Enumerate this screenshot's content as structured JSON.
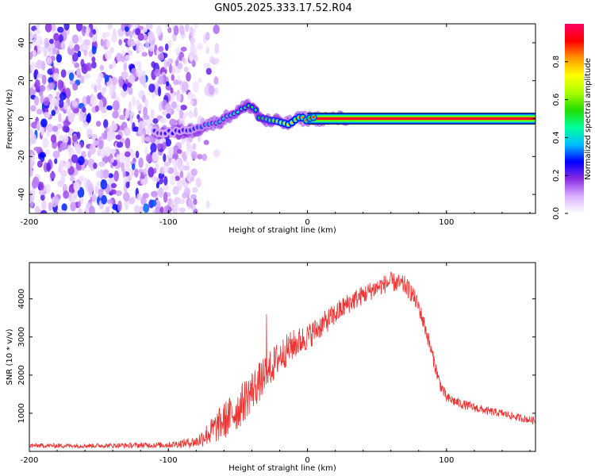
{
  "title": "GN05.2025.333.17.52.R04",
  "chart_data": [
    {
      "type": "heatmap",
      "name": "spectrogram",
      "xlabel": "Height of straight line (km)",
      "ylabel": "Frequency (Hz)",
      "xlim": [
        -200,
        164
      ],
      "ylim": [
        -50,
        50
      ],
      "xticks": [
        "-200",
        "-100",
        "0",
        "100"
      ],
      "yticks": [
        "-40",
        "-20",
        "0",
        "20",
        "40"
      ],
      "colorbar": {
        "label": "Normalized spectral amplitude",
        "range": [
          0,
          1
        ],
        "ticks": [
          "0.0",
          "0.2",
          "0.4",
          "0.6",
          "0.8"
        ],
        "colors": [
          "#ffffff",
          "#d8b0ff",
          "#8a2be2",
          "#0000ff",
          "#00bfff",
          "#00ff99",
          "#22dd00",
          "#aaff00",
          "#ffff00",
          "#ff9900",
          "#ff0000",
          "#ff0066"
        ]
      },
      "noise_region": {
        "x_from": -200,
        "x_to": -80,
        "amplitude": 0.2
      },
      "signal_track": {
        "x": [
          -110,
          -100,
          -90,
          -80,
          -75,
          -70,
          -65,
          -60,
          -55,
          -50,
          -45,
          -42,
          -38,
          -35,
          -30,
          -25,
          -20,
          -15,
          -10,
          -5,
          0,
          10,
          25,
          50,
          100,
          164
        ],
        "freq": [
          -7,
          -7,
          -7,
          -6,
          -4,
          -3,
          -2,
          0,
          2,
          4,
          6,
          7,
          5,
          1,
          -1,
          -2,
          -1,
          -3,
          -1,
          0,
          0,
          0,
          0,
          0,
          0,
          0
        ],
        "amplitude": [
          0.25,
          0.25,
          0.28,
          0.3,
          0.33,
          0.35,
          0.38,
          0.4,
          0.42,
          0.45,
          0.48,
          0.5,
          0.52,
          0.55,
          0.58,
          0.62,
          0.68,
          0.72,
          0.78,
          0.82,
          0.86,
          0.9,
          0.92,
          0.93,
          0.94,
          0.95
        ]
      }
    },
    {
      "type": "line",
      "name": "snr",
      "xlabel": "Height of straight line (km)",
      "ylabel": "SNR (10 * v/v)",
      "xlim": [
        -200,
        164
      ],
      "ylim": [
        0,
        4950
      ],
      "xticks": [
        "-200",
        "-100",
        "0",
        "100"
      ],
      "yticks": [
        "1000",
        "2000",
        "3000",
        "4000"
      ],
      "color": "#ee3333",
      "series": [
        {
          "name": "SNR",
          "x": [
            -200,
            -150,
            -100,
            -80,
            -70,
            -60,
            -50,
            -40,
            -30,
            -20,
            -10,
            0,
            10,
            20,
            30,
            40,
            50,
            60,
            70,
            75,
            80,
            85,
            90,
            95,
            100,
            110,
            120,
            130,
            140,
            150,
            164
          ],
          "y": [
            150,
            150,
            170,
            250,
            500,
            800,
            1100,
            1600,
            2000,
            2500,
            2800,
            3000,
            3300,
            3600,
            3900,
            4100,
            4300,
            4450,
            4350,
            4150,
            3800,
            3200,
            2500,
            1800,
            1400,
            1250,
            1150,
            1050,
            1000,
            900,
            800
          ],
          "noise": [
            60,
            60,
            80,
            150,
            350,
            500,
            550,
            550,
            500,
            450,
            400,
            350,
            320,
            300,
            280,
            260,
            250,
            250,
            250,
            250,
            230,
            220,
            200,
            180,
            150,
            130,
            120,
            110,
            100,
            100,
            100
          ]
        }
      ]
    }
  ]
}
